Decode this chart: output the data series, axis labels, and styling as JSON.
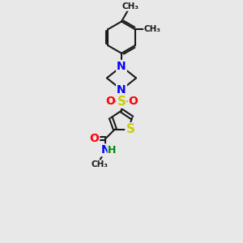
{
  "bg_color": "#e8e8e8",
  "bond_color": "#1a1a1a",
  "bond_width": 1.5,
  "atom_colors": {
    "N": "#0000ff",
    "O": "#ff0000",
    "S": "#cccc00",
    "H": "#008800",
    "C": "#1a1a1a"
  },
  "canvas_xlim": [
    0,
    10
  ],
  "canvas_ylim": [
    0,
    13
  ],
  "figsize": [
    3.0,
    3.0
  ],
  "dpi": 100
}
